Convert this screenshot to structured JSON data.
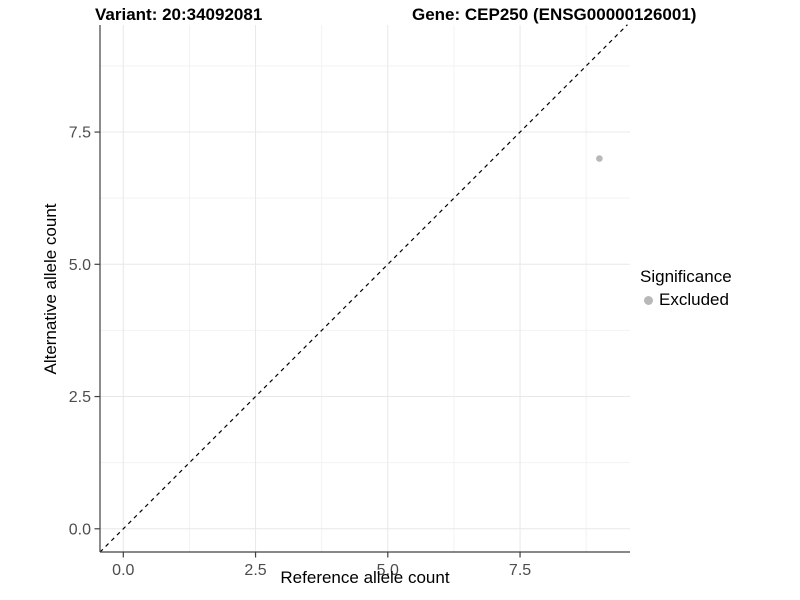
{
  "header": {
    "variant_title": "Variant: 20:34092081",
    "gene_title": "Gene: CEP250 (ENSG00000126001)"
  },
  "chart_data": {
    "type": "scatter",
    "title_left": "Variant: 20:34092081",
    "title_right": "Gene: CEP250 (ENSG00000126001)",
    "xlabel": "Reference allele count",
    "ylabel": "Alternative allele count",
    "xlim": [
      -0.44,
      9.58
    ],
    "ylim": [
      -0.44,
      9.53
    ],
    "x_ticks": [
      0.0,
      2.5,
      5.0,
      7.5
    ],
    "y_ticks": [
      0.0,
      2.5,
      5.0,
      7.5
    ],
    "minor_grid_step": 1.25,
    "grid": true,
    "series": [
      {
        "name": "Excluded",
        "color": "#b8b8b8",
        "points": [
          {
            "x": 9,
            "y": 7
          }
        ]
      }
    ],
    "reference_line": {
      "type": "abline",
      "slope": 1,
      "intercept": 0,
      "style": "dashed",
      "color": "#000000"
    },
    "legend": {
      "title": "Significance",
      "position": "right",
      "entries": [
        {
          "label": "Excluded",
          "color": "#b8b8b8"
        }
      ]
    }
  },
  "colors": {
    "background": "#ffffff",
    "axis_line": "#404040",
    "tick_text": "#4d4d4d",
    "grid_major": "#e8e8e8",
    "grid_minor": "#f2f2f2",
    "title_text": "#000000",
    "point": "#b8b8b8"
  }
}
